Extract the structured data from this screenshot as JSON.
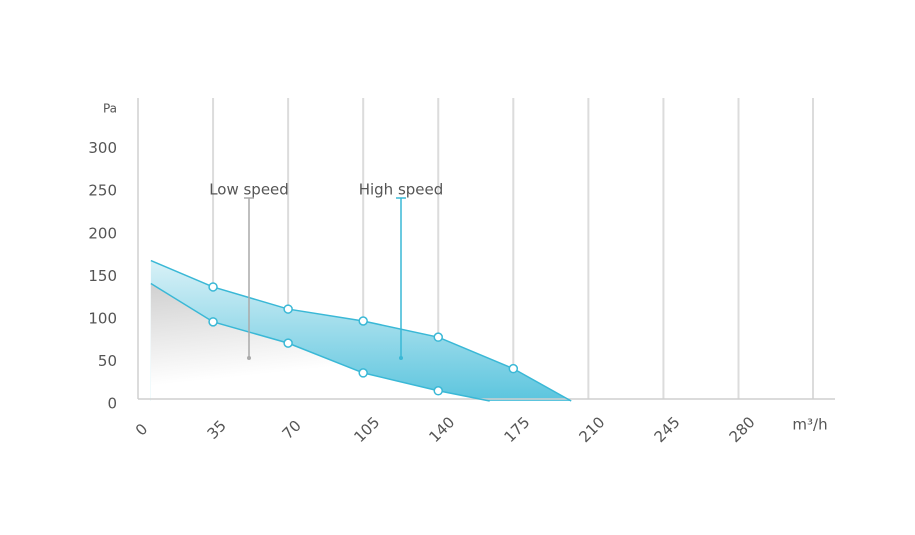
{
  "chart_data": {
    "type": "line",
    "x_label": "m³/h",
    "y_label": "Pa",
    "xlim": [
      0,
      325
    ],
    "ylim": [
      0,
      356
    ],
    "xticks": [
      0,
      35,
      70,
      105,
      140,
      175,
      210,
      245,
      280
    ],
    "yticks": [
      0,
      50,
      100,
      150,
      200,
      250,
      300
    ],
    "grid": true,
    "series": [
      {
        "name": "Low speed",
        "color": "#3ab8d6",
        "x": [
          6,
          35,
          70,
          105,
          140,
          164
        ],
        "values": [
          138,
          93,
          68,
          33,
          12,
          0
        ]
      },
      {
        "name": "High speed",
        "color": "#3ab8d6",
        "x": [
          6,
          35,
          70,
          105,
          140,
          175,
          202
        ],
        "values": [
          165,
          134,
          108,
          94,
          75,
          38,
          0
        ]
      }
    ]
  }
}
